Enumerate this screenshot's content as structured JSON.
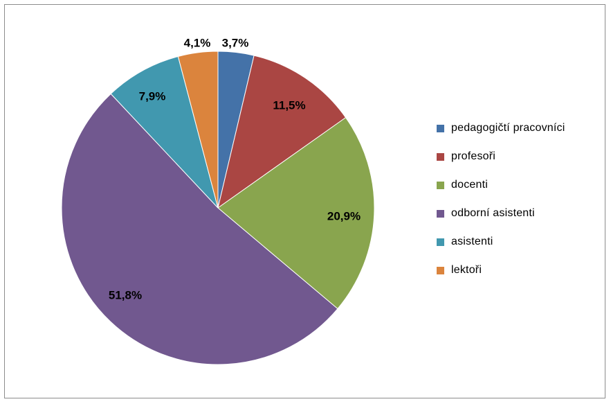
{
  "chart_data": {
    "type": "pie",
    "title": "",
    "legend_position": "right",
    "start": "top",
    "direction": "clockwise",
    "slices": [
      {
        "name": "pedagogičtí pracovníci",
        "value": 3.7,
        "label": "3,7%",
        "color": "#4472a8"
      },
      {
        "name": "profesoři",
        "value": 11.5,
        "label": "11,5%",
        "color": "#aa4643"
      },
      {
        "name": "docenti",
        "value": 20.9,
        "label": "20,9%",
        "color": "#89a54e"
      },
      {
        "name": "odborní asistenti",
        "value": 51.8,
        "label": "51,8%",
        "color": "#71588f"
      },
      {
        "name": "asistenti",
        "value": 7.9,
        "label": "7,9%",
        "color": "#4198af"
      },
      {
        "name": "lektoři",
        "value": 4.1,
        "label": "4,1%",
        "color": "#db843d"
      }
    ]
  }
}
